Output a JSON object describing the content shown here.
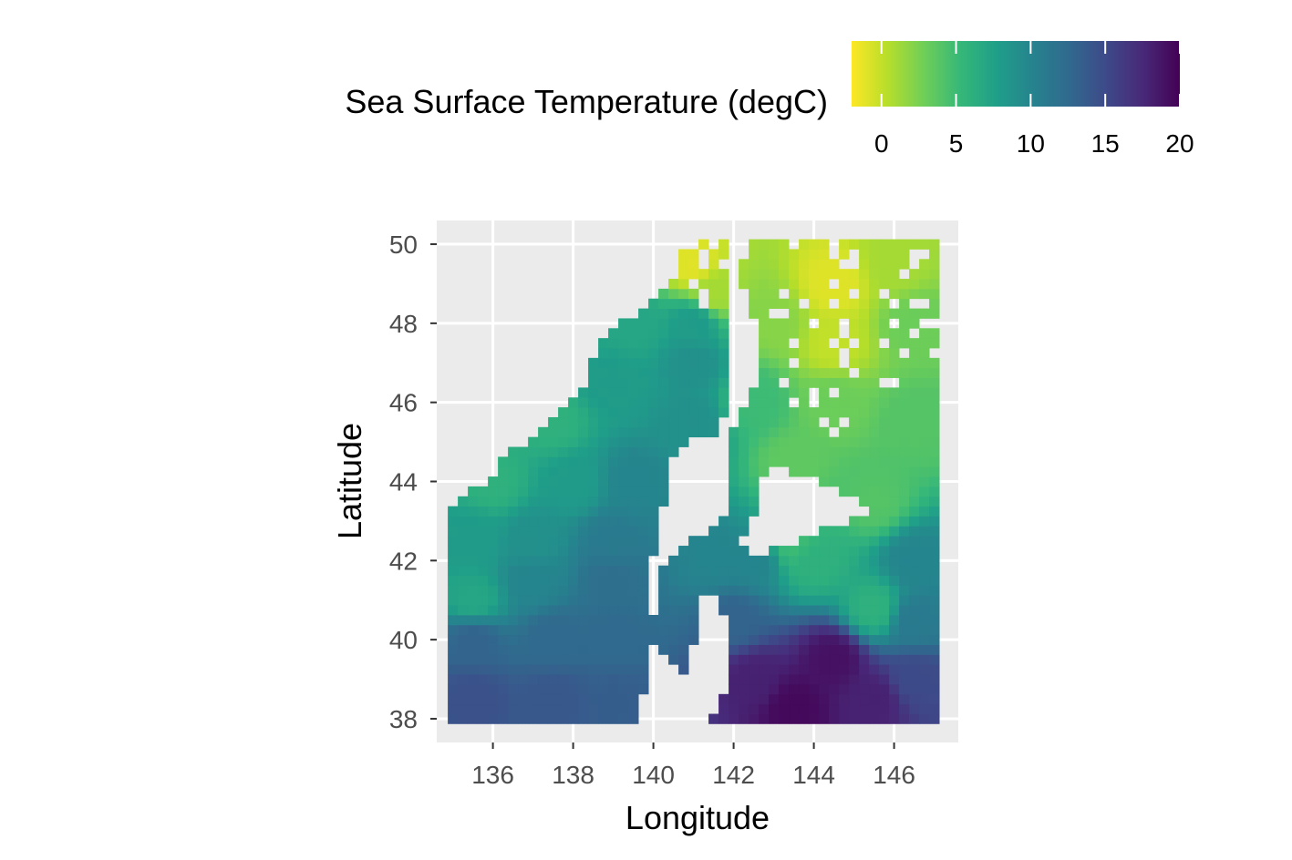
{
  "chart_data": {
    "type": "heatmap",
    "xlabel": "Longitude",
    "ylabel": "Latitude",
    "legend_title": "Sea Surface Temperature (degC)",
    "legend_position": "top",
    "legend_ticks": [
      "0",
      "5",
      "10",
      "15",
      "20"
    ],
    "legend_tick_values": [
      0,
      5,
      10,
      15,
      20
    ],
    "color_range": [
      -2,
      20
    ],
    "colormap": [
      "#fde725",
      "#b5de2b",
      "#6ece58",
      "#35b779",
      "#1f9e89",
      "#26828e",
      "#31688e",
      "#3e4989",
      "#482878",
      "#440154"
    ],
    "x_ticks": [
      136,
      138,
      140,
      142,
      144,
      146
    ],
    "x_tick_labels": [
      "136",
      "138",
      "140",
      "142",
      "144",
      "146"
    ],
    "y_ticks": [
      38,
      40,
      42,
      44,
      46,
      48,
      50
    ],
    "y_tick_labels": [
      "38",
      "40",
      "42",
      "44",
      "46",
      "48",
      "50"
    ],
    "xlim": [
      134.6,
      147.6
    ],
    "ylim": [
      37.4,
      50.6
    ],
    "grid": true,
    "panel_background": "#ebebeb",
    "grid_spec": {
      "lon_start": 135.0,
      "lon_step": 0.25,
      "nx": 49,
      "lat_start": 38.0,
      "lat_step": 0.25,
      "ny": 49
    },
    "temperature_anchors": [
      {
        "lon": 135.5,
        "lat": 38.5,
        "value": 14.5
      },
      {
        "lon": 137.5,
        "lat": 38.5,
        "value": 14.0
      },
      {
        "lon": 139.0,
        "lat": 38.5,
        "value": 13.5
      },
      {
        "lon": 135.5,
        "lat": 40.0,
        "value": 13.0
      },
      {
        "lon": 137.5,
        "lat": 40.0,
        "value": 12.5
      },
      {
        "lon": 139.0,
        "lat": 40.0,
        "value": 12.5
      },
      {
        "lon": 135.5,
        "lat": 41.0,
        "value": 7.0
      },
      {
        "lon": 137.0,
        "lat": 41.5,
        "value": 10.0
      },
      {
        "lon": 139.0,
        "lat": 41.5,
        "value": 12.0
      },
      {
        "lon": 135.5,
        "lat": 42.5,
        "value": 8.0
      },
      {
        "lon": 137.0,
        "lat": 42.5,
        "value": 9.0
      },
      {
        "lon": 139.0,
        "lat": 42.5,
        "value": 11.0
      },
      {
        "lon": 136.0,
        "lat": 44.0,
        "value": 6.0
      },
      {
        "lon": 138.0,
        "lat": 44.0,
        "value": 8.0
      },
      {
        "lon": 139.5,
        "lat": 44.0,
        "value": 10.0
      },
      {
        "lon": 137.5,
        "lat": 45.5,
        "value": 6.0
      },
      {
        "lon": 139.0,
        "lat": 46.5,
        "value": 8.0
      },
      {
        "lon": 139.5,
        "lat": 48.0,
        "value": 7.0
      },
      {
        "lon": 141.0,
        "lat": 45.5,
        "value": 9.0
      },
      {
        "lon": 141.0,
        "lat": 47.0,
        "value": 9.0
      },
      {
        "lon": 141.0,
        "lat": 48.0,
        "value": 8.0
      },
      {
        "lon": 141.0,
        "lat": 49.5,
        "value": -1.0
      },
      {
        "lon": 141.5,
        "lat": 48.8,
        "value": 1.0
      },
      {
        "lon": 141.5,
        "lat": 42.0,
        "value": 10.0
      },
      {
        "lon": 142.5,
        "lat": 42.0,
        "value": 10.0
      },
      {
        "lon": 142.0,
        "lat": 40.5,
        "value": 13.0
      },
      {
        "lon": 142.5,
        "lat": 39.0,
        "value": 18.0
      },
      {
        "lon": 143.5,
        "lat": 38.3,
        "value": 19.5
      },
      {
        "lon": 144.5,
        "lat": 39.5,
        "value": 19.0
      },
      {
        "lon": 145.5,
        "lat": 38.5,
        "value": 18.0
      },
      {
        "lon": 146.5,
        "lat": 39.0,
        "value": 15.0
      },
      {
        "lon": 146.5,
        "lat": 40.5,
        "value": 11.0
      },
      {
        "lon": 145.5,
        "lat": 40.8,
        "value": 6.0
      },
      {
        "lon": 144.0,
        "lat": 42.0,
        "value": 6.0
      },
      {
        "lon": 143.5,
        "lat": 42.5,
        "value": 5.0
      },
      {
        "lon": 146.5,
        "lat": 42.0,
        "value": 10.0
      },
      {
        "lon": 145.5,
        "lat": 43.5,
        "value": 4.0
      },
      {
        "lon": 143.5,
        "lat": 44.5,
        "value": 3.5
      },
      {
        "lon": 142.5,
        "lat": 46.0,
        "value": 5.0
      },
      {
        "lon": 144.5,
        "lat": 46.0,
        "value": 3.0
      },
      {
        "lon": 146.5,
        "lat": 45.5,
        "value": 4.0
      },
      {
        "lon": 143.0,
        "lat": 48.0,
        "value": 2.0
      },
      {
        "lon": 144.5,
        "lat": 47.5,
        "value": 0.0
      },
      {
        "lon": 144.5,
        "lat": 49.0,
        "value": -1.0
      },
      {
        "lon": 146.5,
        "lat": 48.0,
        "value": 3.0
      },
      {
        "lon": 146.0,
        "lat": 49.5,
        "value": 1.0
      }
    ]
  }
}
